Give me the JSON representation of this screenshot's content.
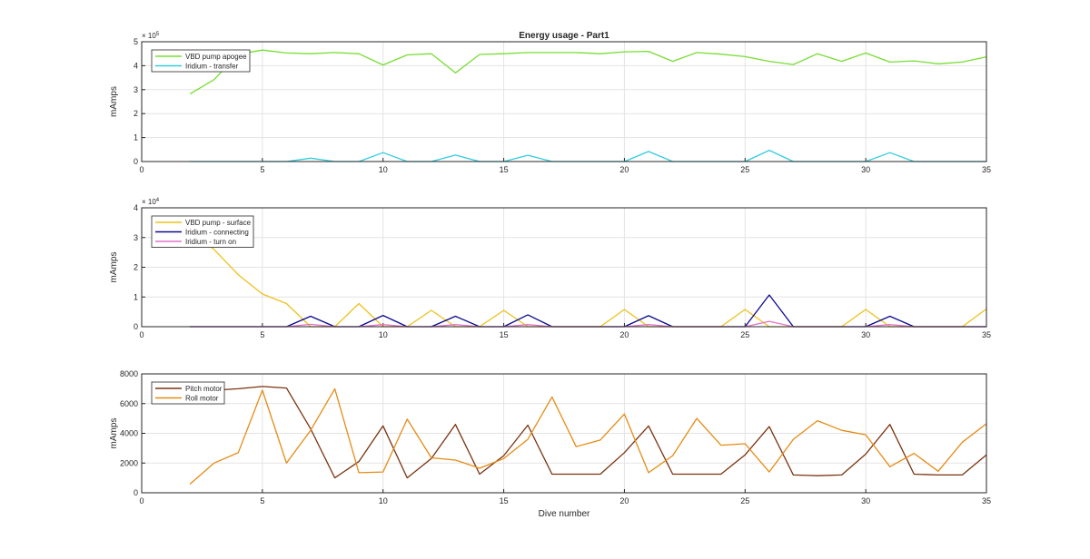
{
  "chart_data": [
    {
      "type": "line",
      "title": "Energy usage - Part1",
      "xlabel": "",
      "ylabel": "mAmps",
      "xlim": [
        0,
        35
      ],
      "ylim": [
        0,
        5
      ],
      "x_ticks": [
        "0",
        "5",
        "10",
        "15",
        "20",
        "25",
        "30",
        "35"
      ],
      "y_ticks": [
        "0",
        "1",
        "2",
        "3",
        "4",
        "5"
      ],
      "y_multiplier": {
        "base": "× 10",
        "exp": "5"
      },
      "grid": true,
      "legend_position": "top-left",
      "series": [
        {
          "name": "VBD pump apogee",
          "color": "#77dd33",
          "x": [
            2,
            3,
            4,
            5,
            6,
            7,
            8,
            9,
            10,
            11,
            12,
            13,
            14,
            15,
            16,
            17,
            18,
            19,
            20,
            21,
            22,
            23,
            24,
            25,
            26,
            27,
            28,
            29,
            30,
            31,
            32,
            33,
            34,
            35
          ],
          "y": [
            2.82,
            3.42,
            4.48,
            4.65,
            4.53,
            4.5,
            4.55,
            4.5,
            4.03,
            4.45,
            4.5,
            3.7,
            4.47,
            4.5,
            4.55,
            4.55,
            4.55,
            4.5,
            4.58,
            4.6,
            4.18,
            4.55,
            4.48,
            4.38,
            4.18,
            4.05,
            4.5,
            4.18,
            4.53,
            4.15,
            4.2,
            4.08,
            4.15,
            4.37
          ]
        },
        {
          "name": "Iridium - transfer",
          "color": "#33ccdd",
          "x": [
            2,
            3,
            4,
            5,
            6,
            7,
            8,
            9,
            10,
            11,
            12,
            13,
            14,
            15,
            16,
            17,
            18,
            19,
            20,
            21,
            22,
            23,
            24,
            25,
            26,
            27,
            28,
            29,
            30,
            31,
            32,
            33,
            34,
            35
          ],
          "y": [
            0,
            0,
            0,
            0,
            0,
            0.14,
            0,
            0,
            0.37,
            0,
            0,
            0.27,
            0,
            0,
            0.26,
            0,
            0,
            0,
            0,
            0.42,
            0,
            0,
            0,
            0,
            0.47,
            0,
            0,
            0,
            0,
            0.37,
            0,
            0,
            0,
            0
          ]
        }
      ]
    },
    {
      "type": "line",
      "title": "",
      "xlabel": "",
      "ylabel": "mAmps",
      "xlim": [
        0,
        35
      ],
      "ylim": [
        0,
        4
      ],
      "x_ticks": [
        "0",
        "5",
        "10",
        "15",
        "20",
        "25",
        "30",
        "35"
      ],
      "y_ticks": [
        "0",
        "1",
        "2",
        "3",
        "4"
      ],
      "y_multiplier": {
        "base": "× 10",
        "exp": "4"
      },
      "grid": true,
      "legend_position": "top-left",
      "series": [
        {
          "name": "VBD pump - surface",
          "color": "#edc11a",
          "x": [
            2,
            3,
            4,
            5,
            6,
            7,
            8,
            9,
            10,
            11,
            12,
            13,
            14,
            15,
            16,
            17,
            18,
            19,
            20,
            21,
            22,
            23,
            24,
            25,
            26,
            27,
            28,
            29,
            30,
            31,
            32,
            33,
            34,
            35
          ],
          "y": [
            3.2,
            2.6,
            1.75,
            1.1,
            0.78,
            0,
            0,
            0.78,
            0,
            0,
            0.55,
            0,
            0,
            0.55,
            0,
            0,
            0,
            0,
            0.58,
            0,
            0,
            0,
            0,
            0.58,
            0,
            0,
            0,
            0,
            0.58,
            0,
            0,
            0,
            0,
            0.6
          ]
        },
        {
          "name": "Iridium - connecting",
          "color": "#0a0a8c",
          "x": [
            2,
            3,
            4,
            5,
            6,
            7,
            8,
            9,
            10,
            11,
            12,
            13,
            14,
            15,
            16,
            17,
            18,
            19,
            20,
            21,
            22,
            23,
            24,
            25,
            26,
            27,
            28,
            29,
            30,
            31,
            32,
            33,
            34,
            35
          ],
          "y": [
            0,
            0,
            0,
            0,
            0,
            0.35,
            0,
            0,
            0.38,
            0,
            0,
            0.35,
            0,
            0,
            0.4,
            0,
            0,
            0,
            0,
            0.37,
            0,
            0,
            0,
            0,
            1.07,
            0,
            0,
            0,
            0,
            0.35,
            0,
            0,
            0,
            0
          ]
        },
        {
          "name": "Iridium - turn on",
          "color": "#e373c8",
          "x": [
            2,
            3,
            4,
            5,
            6,
            7,
            8,
            9,
            10,
            11,
            12,
            13,
            14,
            15,
            16,
            17,
            18,
            19,
            20,
            21,
            22,
            23,
            24,
            25,
            26,
            27,
            28,
            29,
            30,
            31,
            32,
            33,
            34,
            35
          ],
          "y": [
            0,
            0,
            0,
            0,
            0,
            0.08,
            0,
            0,
            0.07,
            0,
            0,
            0.07,
            0,
            0,
            0.07,
            0,
            0,
            0,
            0,
            0.07,
            0,
            0,
            0,
            0,
            0.18,
            0,
            0,
            0,
            0,
            0.07,
            0,
            0,
            0,
            0
          ]
        }
      ]
    },
    {
      "type": "line",
      "title": "",
      "xlabel": "Dive number",
      "ylabel": "mAmps",
      "xlim": [
        0,
        35
      ],
      "ylim": [
        0,
        8000
      ],
      "x_ticks": [
        "0",
        "5",
        "10",
        "15",
        "20",
        "25",
        "30",
        "35"
      ],
      "y_ticks": [
        "0",
        "2000",
        "4000",
        "6000",
        "8000"
      ],
      "grid": true,
      "legend_position": "top-left",
      "series": [
        {
          "name": "Pitch motor",
          "color": "#7a3310",
          "x": [
            2,
            3,
            4,
            5,
            6,
            7,
            8,
            9,
            10,
            11,
            12,
            13,
            14,
            15,
            16,
            17,
            18,
            19,
            20,
            21,
            22,
            23,
            24,
            25,
            26,
            27,
            28,
            29,
            30,
            31,
            32,
            33,
            34,
            35
          ],
          "y": [
            6900,
            6900,
            7000,
            7150,
            7050,
            4300,
            1000,
            2100,
            4500,
            1000,
            2300,
            4600,
            1250,
            2500,
            4550,
            1250,
            1250,
            1250,
            2700,
            4500,
            1250,
            1250,
            1250,
            2550,
            4450,
            1200,
            1150,
            1200,
            2600,
            4600,
            1250,
            1200,
            1200,
            2550
          ]
        },
        {
          "name": "Roll motor",
          "color": "#e58b14",
          "x": [
            2,
            3,
            4,
            5,
            6,
            7,
            8,
            9,
            10,
            11,
            12,
            13,
            14,
            15,
            16,
            17,
            18,
            19,
            20,
            21,
            22,
            23,
            24,
            25,
            26,
            27,
            28,
            29,
            30,
            31,
            32,
            33,
            34,
            35
          ],
          "y": [
            580,
            2000,
            2700,
            6900,
            2000,
            4200,
            7000,
            1350,
            1400,
            4950,
            2350,
            2200,
            1650,
            2300,
            3600,
            6450,
            3100,
            3550,
            5300,
            1350,
            2500,
            5000,
            3200,
            3300,
            1400,
            3600,
            4850,
            4200,
            3900,
            1750,
            2650,
            1450,
            3400,
            4650
          ]
        }
      ]
    }
  ]
}
